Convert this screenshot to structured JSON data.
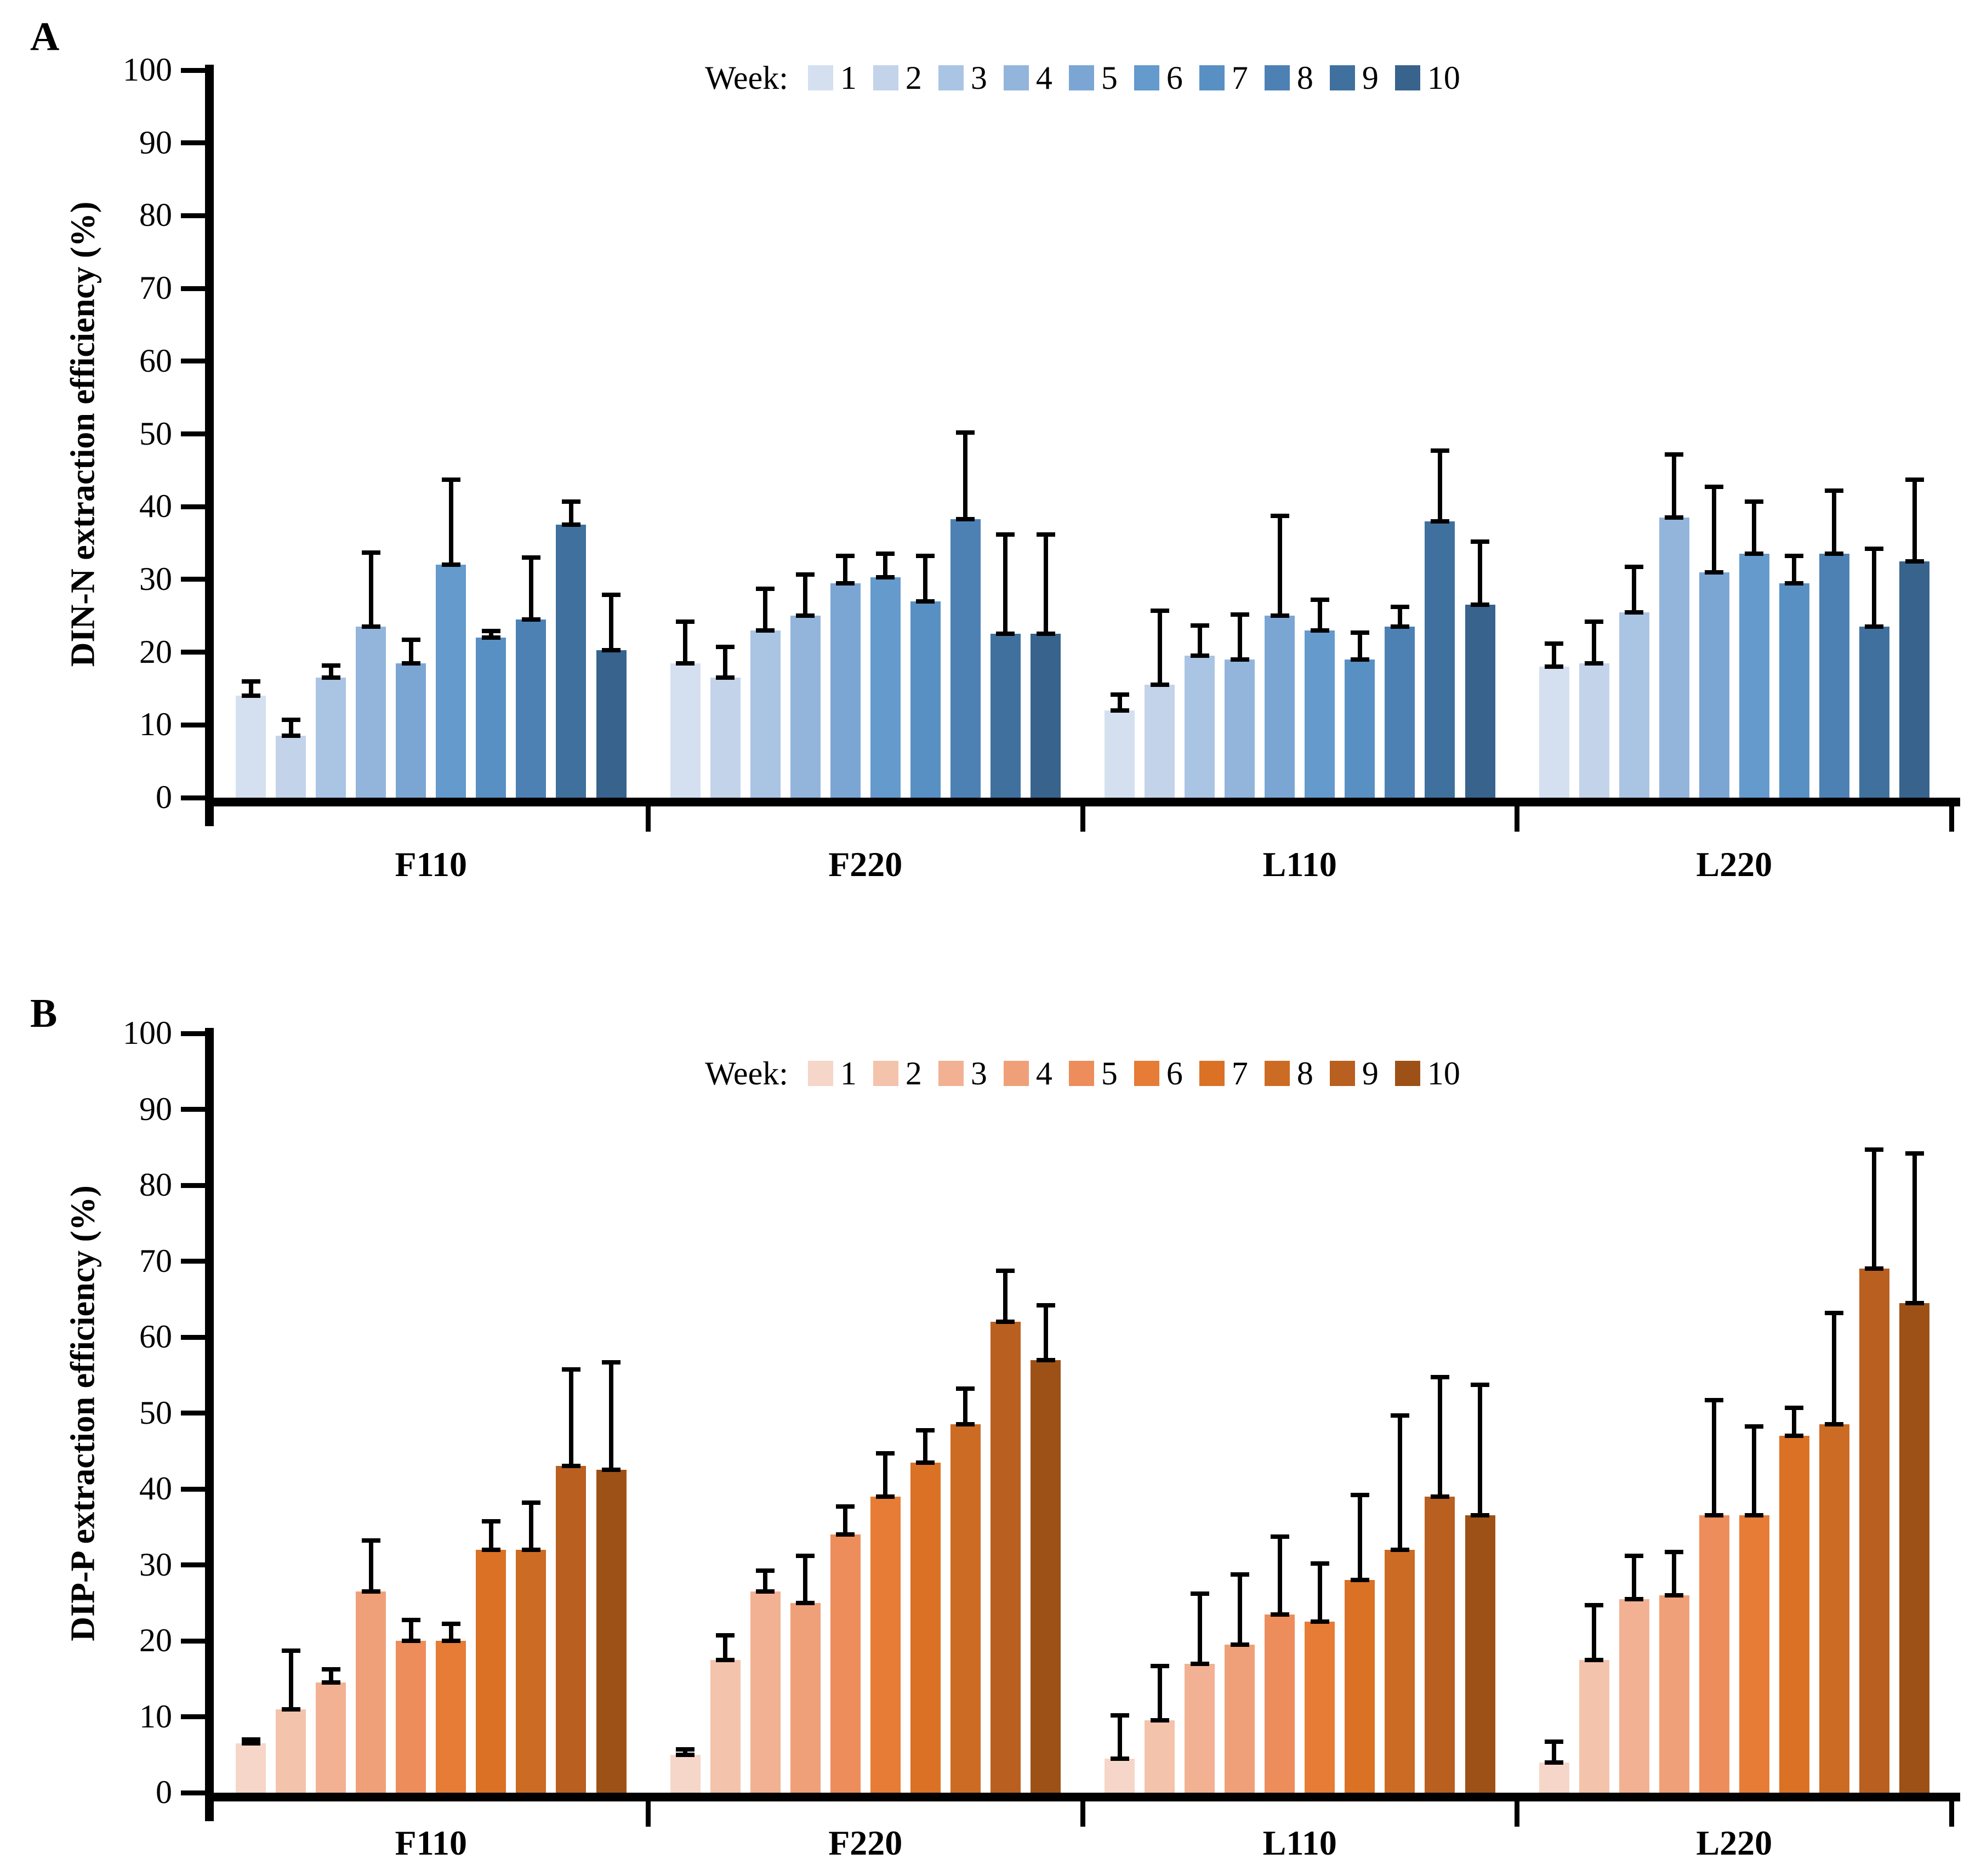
{
  "chart_data": [
    {
      "type": "bar",
      "panel": "A",
      "title_letter": "A",
      "ylabel": "DIN-N extraction efficiency (%)",
      "legend_title": "Week:",
      "legend_position": "top-center",
      "grid": false,
      "categories": [
        "F110",
        "F220",
        "L110",
        "L220"
      ],
      "ylim": [
        0,
        100
      ],
      "ytick_step": 10,
      "palette": [
        "#d4e0f0",
        "#c3d3ea",
        "#aac4e3",
        "#93b5dc",
        "#7ba6d4",
        "#649acc",
        "#5990c3",
        "#4d81b4",
        "#40719e",
        "#38638c"
      ],
      "series": [
        {
          "name": "1",
          "values": [
            14,
            18.5,
            12,
            18
          ],
          "errors_plus": [
            2.3,
            6,
            2.5,
            3.5
          ]
        },
        {
          "name": "2",
          "values": [
            8.5,
            16.5,
            15.5,
            18.5
          ],
          "errors_plus": [
            2.5,
            4.5,
            10.5,
            6
          ]
        },
        {
          "name": "3",
          "values": [
            16.5,
            23,
            19.5,
            25.5
          ],
          "errors_plus": [
            2,
            6,
            4.5,
            6.5
          ]
        },
        {
          "name": "4",
          "values": [
            23.5,
            25,
            19,
            38.5
          ],
          "errors_plus": [
            10.5,
            6,
            6.5,
            9
          ]
        },
        {
          "name": "5",
          "values": [
            18.5,
            29.5,
            25,
            31
          ],
          "errors_plus": [
            3.5,
            4,
            14,
            12
          ]
        },
        {
          "name": "6",
          "values": [
            32,
            30.3,
            23,
            33.5
          ],
          "errors_plus": [
            12,
            3.5,
            4.5,
            7.5
          ]
        },
        {
          "name": "7",
          "values": [
            22,
            27,
            19,
            29.5
          ],
          "errors_plus": [
            1.2,
            6.5,
            4,
            4
          ]
        },
        {
          "name": "8",
          "values": [
            24.5,
            38.3,
            23.5,
            33.5
          ],
          "errors_plus": [
            8.8,
            12.2,
            3,
            9
          ]
        },
        {
          "name": "9",
          "values": [
            37.5,
            22.5,
            38,
            23.5
          ],
          "errors_plus": [
            3.5,
            14,
            10,
            11
          ]
        },
        {
          "name": "10",
          "values": [
            20.3,
            22.5,
            26.5,
            32.5
          ],
          "errors_plus": [
            7.9,
            14,
            9,
            11.5
          ]
        }
      ]
    },
    {
      "type": "bar",
      "panel": "B",
      "title_letter": "B",
      "ylabel": "DIP-P extraction efficiency (%)",
      "legend_title": "Week:",
      "legend_position": "top-center",
      "grid": false,
      "categories": [
        "F110",
        "F220",
        "L110",
        "L220"
      ],
      "ylim": [
        0,
        100
      ],
      "ytick_step": 10,
      "palette": [
        "#f6d6c8",
        "#f4c3ab",
        "#f2b192",
        "#f0a078",
        "#ed8d5c",
        "#e67c35",
        "#da7125",
        "#cc6b23",
        "#b95f20",
        "#9d5117"
      ],
      "series": [
        {
          "name": "1",
          "values": [
            6.5,
            5,
            4.5,
            4
          ],
          "errors_plus": [
            0.8,
            1,
            6,
            3
          ]
        },
        {
          "name": "2",
          "values": [
            11,
            17.5,
            9.5,
            17.5
          ],
          "errors_plus": [
            8,
            3.5,
            7.5,
            7.5
          ]
        },
        {
          "name": "3",
          "values": [
            14.5,
            26.5,
            17,
            25.5
          ],
          "errors_plus": [
            2,
            3,
            9.5,
            6
          ]
        },
        {
          "name": "4",
          "values": [
            26.5,
            25,
            19.5,
            26
          ],
          "errors_plus": [
            7,
            6.5,
            9.5,
            6
          ]
        },
        {
          "name": "5",
          "values": [
            20,
            34,
            23.5,
            36.5
          ],
          "errors_plus": [
            3,
            4,
            10.5,
            15.5
          ]
        },
        {
          "name": "6",
          "values": [
            20,
            39,
            22.5,
            36.5
          ],
          "errors_plus": [
            2.5,
            6,
            8,
            12
          ]
        },
        {
          "name": "7",
          "values": [
            32,
            43.5,
            28,
            47
          ],
          "errors_plus": [
            4,
            4.5,
            11.5,
            4
          ]
        },
        {
          "name": "8",
          "values": [
            32,
            48.5,
            32,
            48.5
          ],
          "errors_plus": [
            6.5,
            5,
            18,
            15
          ]
        },
        {
          "name": "9",
          "values": [
            43,
            62,
            39,
            69
          ],
          "errors_plus": [
            13,
            7,
            16,
            16
          ]
        },
        {
          "name": "10",
          "values": [
            42.5,
            57,
            36.5,
            64.5
          ],
          "errors_plus": [
            14.5,
            7.5,
            17.5,
            20
          ]
        }
      ]
    }
  ]
}
